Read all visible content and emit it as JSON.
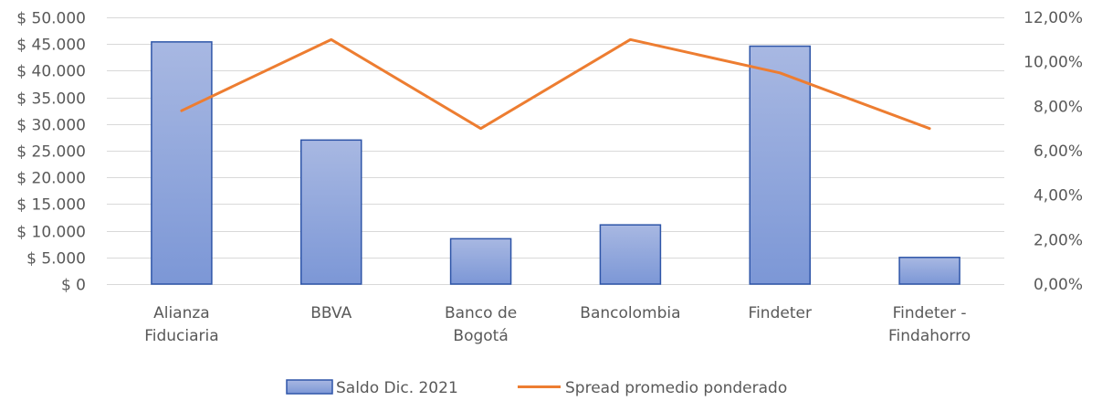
{
  "chart_data": {
    "type": "bar",
    "categories": [
      [
        "Alianza",
        "Fiduciaria"
      ],
      [
        "BBVA"
      ],
      [
        "Banco de",
        "Bogotá"
      ],
      [
        "Bancolombia"
      ],
      [
        "Findeter"
      ],
      [
        "Findeter -",
        "Findahorro"
      ]
    ],
    "series": [
      {
        "name": "Saldo Dic. 2021",
        "type": "bar",
        "axis": "left",
        "values": [
          45400,
          27000,
          8500,
          11100,
          44600,
          5000
        ],
        "color": "#8fa5d9",
        "border": "#2e55a8"
      },
      {
        "name": "Spread promedio ponderado",
        "type": "line",
        "axis": "right",
        "values": [
          7.8,
          11.0,
          7.0,
          11.0,
          9.5,
          7.0
        ],
        "color": "#ed7d31"
      }
    ],
    "y_left": {
      "ylim": [
        0,
        50000
      ],
      "ticks": [
        0,
        5000,
        10000,
        15000,
        20000,
        25000,
        30000,
        35000,
        40000,
        45000,
        50000
      ],
      "tick_labels": [
        "$ 0",
        "$ 5.000",
        "$ 10.000",
        "$ 15.000",
        "$ 20.000",
        "$ 25.000",
        "$ 30.000",
        "$ 35.000",
        "$ 40.000",
        "$ 45.000",
        "$ 50.000"
      ]
    },
    "y_right": {
      "ylim": [
        0,
        12
      ],
      "ticks": [
        0,
        2,
        4,
        6,
        8,
        10,
        12
      ],
      "tick_labels": [
        "0,00%",
        "2,00%",
        "4,00%",
        "6,00%",
        "8,00%",
        "10,00%",
        "12,00%"
      ]
    },
    "grid": true,
    "legend": "bottom-center"
  }
}
